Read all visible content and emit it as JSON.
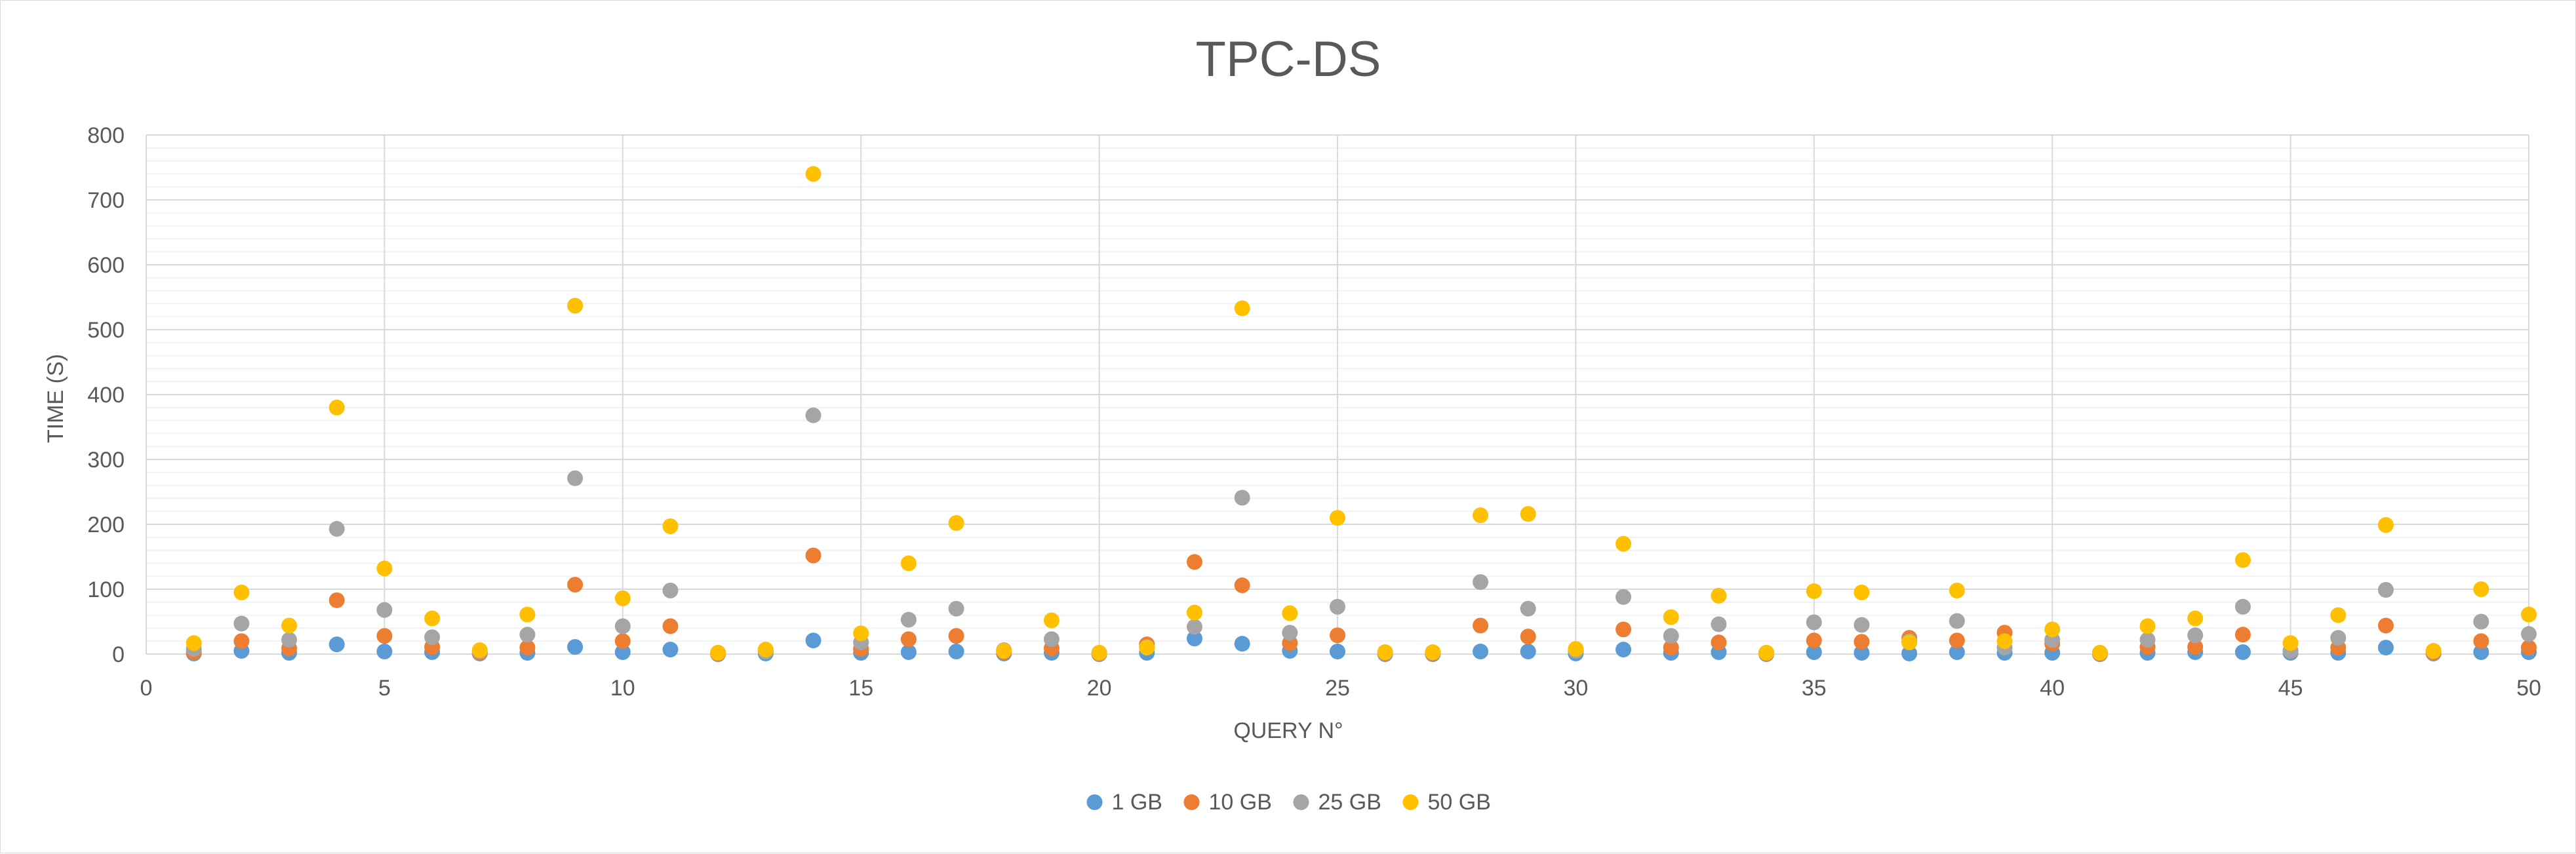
{
  "chart_data": {
    "type": "scatter",
    "title": "TPC-DS",
    "xlabel": "QUERY N°",
    "ylabel": "TIME (S)",
    "xlim": [
      0,
      50
    ],
    "ylim": [
      0,
      800
    ],
    "x_ticks": [
      0,
      5,
      10,
      15,
      20,
      25,
      30,
      35,
      40,
      45,
      50
    ],
    "y_ticks": [
      0,
      100,
      200,
      300,
      400,
      500,
      600,
      700,
      800
    ],
    "grid": {
      "major_x": true,
      "major_y": true,
      "minor_y": true
    },
    "legend_position": "bottom",
    "x": [
      1,
      2,
      3,
      4,
      5,
      6,
      7,
      8,
      9,
      10,
      11,
      12,
      13,
      14,
      15,
      16,
      17,
      18,
      19,
      20,
      21,
      22,
      23,
      24,
      25,
      26,
      27,
      28,
      29,
      30,
      31,
      32,
      33,
      34,
      35,
      36,
      37,
      38,
      39,
      40,
      41,
      42,
      43,
      44,
      45,
      46,
      47,
      48,
      49,
      50
    ],
    "series": [
      {
        "name": "1 GB",
        "color": "#5B9BD5",
        "values": [
          1,
          5,
          2,
          15,
          4,
          3,
          1,
          2,
          11,
          3,
          7,
          0,
          1,
          21,
          2,
          3,
          4,
          1,
          2,
          0,
          2,
          24,
          16,
          5,
          4,
          0,
          0,
          4,
          4,
          1,
          7,
          2,
          3,
          0,
          3,
          2,
          1,
          3,
          2,
          2,
          0,
          2,
          3,
          3,
          2,
          2,
          10,
          1,
          3,
          3
        ]
      },
      {
        "name": "10 GB",
        "color": "#ED7D31",
        "values": [
          3,
          20,
          9,
          83,
          28,
          11,
          2,
          10,
          107,
          20,
          43,
          1,
          5,
          152,
          8,
          23,
          28,
          3,
          9,
          1,
          15,
          142,
          106,
          17,
          29,
          1,
          1,
          44,
          27,
          5,
          38,
          10,
          18,
          1,
          21,
          19,
          25,
          21,
          33,
          16,
          1,
          11,
          11,
          30,
          5,
          10,
          44,
          2,
          20,
          10
        ]
      },
      {
        "name": "25 GB",
        "color": "#A5A5A5",
        "values": [
          8,
          47,
          22,
          193,
          68,
          26,
          4,
          30,
          271,
          43,
          98,
          2,
          4,
          368,
          18,
          53,
          70,
          6,
          23,
          2,
          11,
          42,
          241,
          33,
          73,
          2,
          2,
          111,
          70,
          5,
          88,
          28,
          46,
          2,
          49,
          45,
          20,
          51,
          10,
          22,
          2,
          22,
          29,
          73,
          5,
          25,
          99,
          4,
          50,
          31
        ]
      },
      {
        "name": "50 GB",
        "color": "#FFC000",
        "values": [
          17,
          95,
          44,
          380,
          132,
          55,
          6,
          61,
          537,
          86,
          197,
          2,
          7,
          740,
          32,
          140,
          202,
          5,
          52,
          2,
          10,
          64,
          533,
          63,
          210,
          3,
          3,
          214,
          216,
          8,
          170,
          57,
          90,
          2,
          97,
          95,
          18,
          98,
          20,
          38,
          2,
          43,
          55,
          145,
          17,
          60,
          199,
          5,
          100,
          61
        ]
      }
    ]
  }
}
